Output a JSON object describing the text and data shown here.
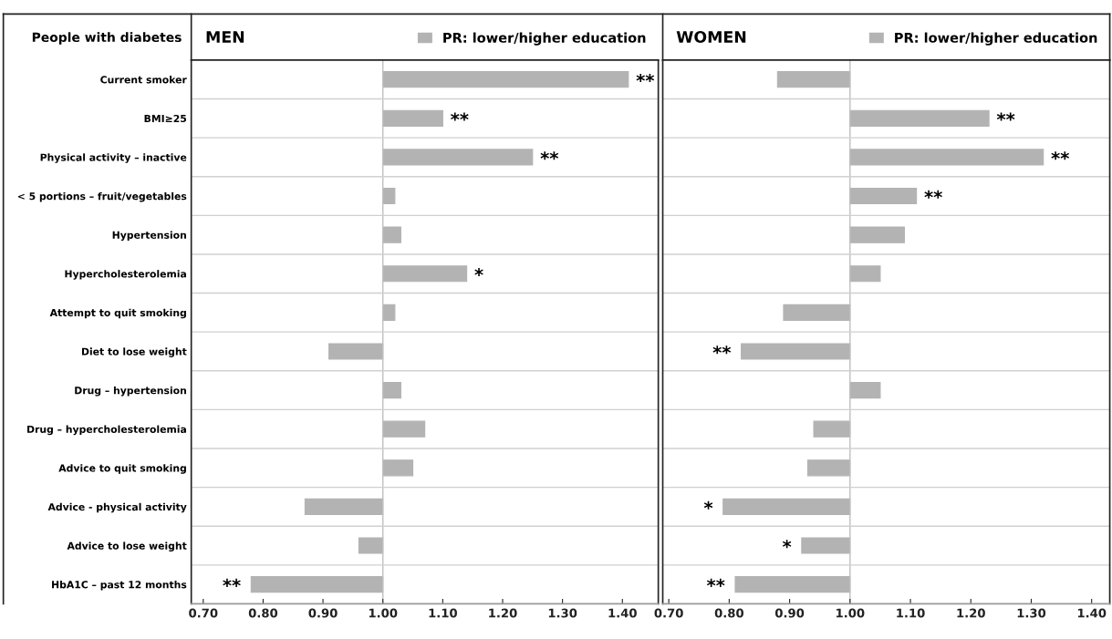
{
  "chart_data": [
    {
      "type": "bar",
      "orientation": "horizontal",
      "title": "MEN",
      "categories": [
        "Current smoker",
        "BMI≥25",
        "Physical activity – inactive",
        "< 5 portions – fruit/vegetables",
        "Hypertension",
        "Hypercholesterolemia",
        "Attempt to quit smoking",
        "Diet to lose weight",
        "Drug – hypertension",
        "Drug – hypercholesterolemia",
        "Advice to quit smoking",
        "Advice - physical activity",
        "Advice to lose weight",
        "HbA1C – past 12 months"
      ],
      "series": [
        {
          "name": "PR: lower/higher education",
          "color": "#b3b3b3",
          "base": [
            1.0,
            1.0,
            1.0,
            1.0,
            1.0,
            1.0,
            1.0,
            1.0,
            1.0,
            1.0,
            1.0,
            1.0,
            1.0,
            1.0
          ],
          "values": [
            0.41,
            0.1,
            0.25,
            0.02,
            0.03,
            0.14,
            0.02,
            -0.09,
            0.03,
            0.07,
            0.05,
            -0.13,
            -0.04,
            -0.22
          ]
        }
      ],
      "xlim": [
        0.68,
        1.46
      ],
      "xticks": [
        {
          "value": 0.7,
          "label": "0.70"
        },
        {
          "value": 0.8,
          "label": "0.80"
        },
        {
          "value": 0.9,
          "label": "0.90"
        },
        {
          "value": 1.0,
          "label": "1.00"
        },
        {
          "value": 1.1,
          "label": "1.10"
        },
        {
          "value": 1.2,
          "label": "1.20"
        },
        {
          "value": 1.3,
          "label": "1.30"
        },
        {
          "value": 1.4,
          "label": "1.40"
        }
      ],
      "ref_lines": [
        {
          "axis": "x",
          "value": 1.0,
          "color": "#bfbfbf"
        }
      ],
      "grid": "y",
      "legend": "top right",
      "annotations": [
        "People with diabetes",
        {
          "text": "**",
          "x": 1.41,
          "y": "Current smoker"
        },
        {
          "text": "**",
          "x": 1.1,
          "y": "BMI≥25"
        },
        {
          "text": "**",
          "x": 1.25,
          "y": "Physical activity – inactive"
        },
        {
          "text": "*",
          "x": 1.14,
          "y": "Hypercholesterolemia"
        },
        {
          "text": "**",
          "x": 0.78,
          "y": "HbA1C – past 12 months"
        }
      ]
    },
    {
      "type": "bar",
      "orientation": "horizontal",
      "title": "WOMEN",
      "categories": [
        "Current smoker",
        "BMI≥25",
        "Physical activity – inactive",
        "< 5 portions – fruit/vegetables",
        "Hypertension",
        "Hypercholesterolemia",
        "Attempt to quit smoking",
        "Diet to lose weight",
        "Drug – hypertension",
        "Drug – hypercholesterolemia",
        "Advice to quit smoking",
        "Advice - physical activity",
        "Advice to lose weight",
        "HbA1C – past 12 months"
      ],
      "series": [
        {
          "name": "PR: lower/higher education",
          "color": "#b3b3b3",
          "base": [
            1.0,
            1.0,
            1.0,
            1.0,
            1.0,
            1.0,
            1.0,
            1.0,
            1.0,
            1.0,
            1.0,
            1.0,
            1.0,
            1.0
          ],
          "values": [
            -0.12,
            0.23,
            0.32,
            0.11,
            0.09,
            0.05,
            -0.11,
            -0.18,
            0.05,
            -0.06,
            -0.07,
            -0.21,
            -0.08,
            -0.19
          ]
        }
      ],
      "xlim": [
        0.69,
        1.43
      ],
      "xticks": [
        {
          "value": 0.7,
          "label": "0.70"
        },
        {
          "value": 0.8,
          "label": "0.80"
        },
        {
          "value": 0.9,
          "label": "0.90"
        },
        {
          "value": 1.0,
          "label": "1.00"
        },
        {
          "value": 1.1,
          "label": "1.10"
        },
        {
          "value": 1.2,
          "label": "1.20"
        },
        {
          "value": 1.3,
          "label": "1.30"
        },
        {
          "value": 1.4,
          "label": "1.40"
        }
      ],
      "ref_lines": [
        {
          "axis": "x",
          "value": 1.0,
          "color": "#bfbfbf"
        }
      ],
      "grid": "y",
      "legend": "top right",
      "tick_labels": "x",
      "annotations": [
        {
          "text": "**",
          "x": 1.23,
          "y": "BMI≥25"
        },
        {
          "text": "**",
          "x": 1.32,
          "y": "Physical activity – inactive"
        },
        {
          "text": "**",
          "x": 1.11,
          "y": "< 5 portions – fruit/vegetables"
        },
        {
          "text": "**",
          "x": 0.82,
          "y": "Diet to lose weight"
        },
        {
          "text": "*",
          "x": 0.79,
          "y": "Advice - physical activity"
        },
        {
          "text": "*",
          "x": 0.92,
          "y": "Advice to lose weight"
        },
        {
          "text": "**",
          "x": 0.81,
          "y": "HbA1C – past 12 months"
        }
      ]
    }
  ]
}
